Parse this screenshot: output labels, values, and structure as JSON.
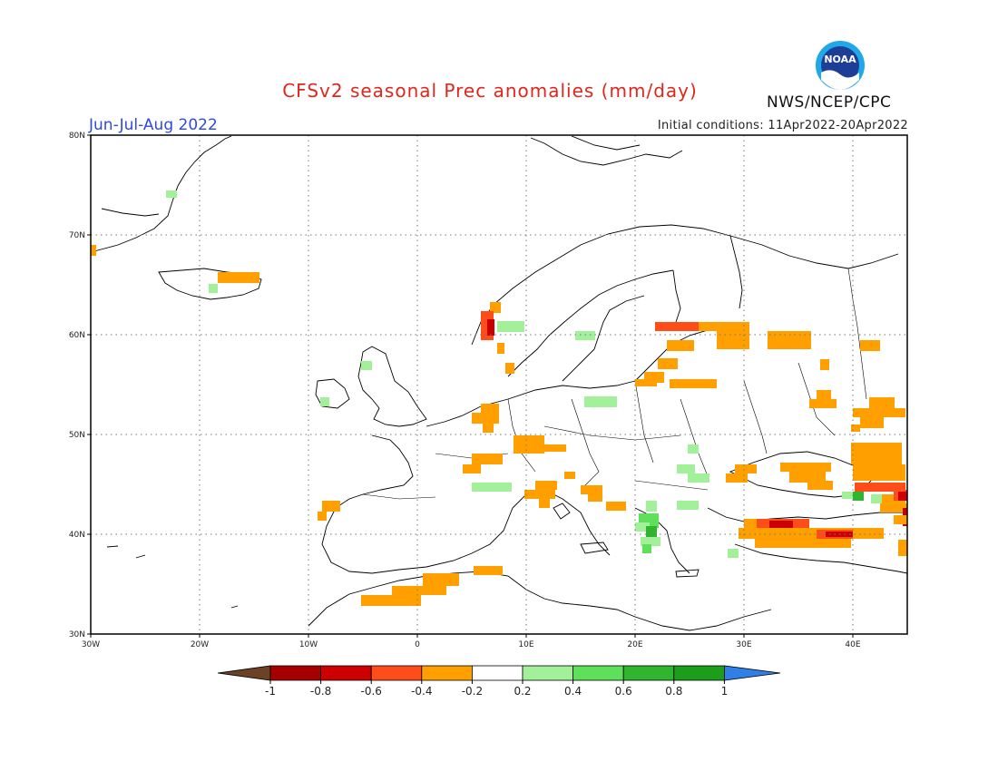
{
  "header": {
    "title": "CFSv2 seasonal Prec anomalies (mm/day)",
    "season": "Jun-Jul-Aug 2022",
    "initial_conditions": "Initial conditions: 11Apr2022-20Apr2022",
    "agency": "NWS/NCEP/CPC",
    "logo_text": "NOAA"
  },
  "map": {
    "lon_range": [
      -30,
      45
    ],
    "lat_range": [
      30,
      80
    ],
    "lon_ticks": [
      {
        "value": -30,
        "label": "30W"
      },
      {
        "value": -20,
        "label": "20W"
      },
      {
        "value": -10,
        "label": "10W"
      },
      {
        "value": 0,
        "label": "0"
      },
      {
        "value": 10,
        "label": "10E"
      },
      {
        "value": 20,
        "label": "20E"
      },
      {
        "value": 30,
        "label": "30E"
      },
      {
        "value": 40,
        "label": "40E"
      }
    ],
    "lat_ticks": [
      {
        "value": 30,
        "label": "30N"
      },
      {
        "value": 40,
        "label": "40N"
      },
      {
        "value": 50,
        "label": "50N"
      },
      {
        "value": 60,
        "label": "60N"
      },
      {
        "value": 70,
        "label": "70N"
      },
      {
        "value": 80,
        "label": "80N"
      }
    ],
    "grid": true
  },
  "colorbar": {
    "labels": [
      "-1",
      "-0.8",
      "-0.6",
      "-0.4",
      "-0.2",
      "0.2",
      "0.4",
      "0.6",
      "0.8",
      "1"
    ],
    "colors": [
      "#6b4226",
      "#a50000",
      "#cc0000",
      "#ff4d1a",
      "#ff9f00",
      "#ffffff",
      "#a2f09a",
      "#5ee05a",
      "#2fb52f",
      "#1c9e1c",
      "#2f7fe6"
    ]
  }
}
